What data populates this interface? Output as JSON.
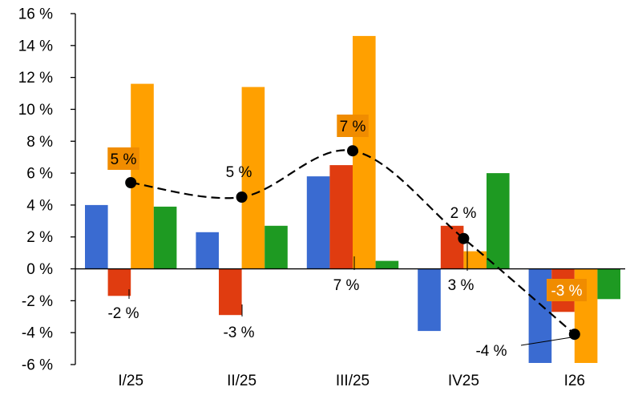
{
  "chart_data": {
    "type": "bar",
    "categories": [
      "I/25",
      "II/25",
      "III/25",
      "IV25",
      "I26"
    ],
    "ylim": [
      -6,
      16
    ],
    "yticks": [
      -6,
      -4,
      -2,
      0,
      2,
      4,
      6,
      8,
      10,
      12,
      14,
      16
    ],
    "ytick_labels": [
      "-6 %",
      "-4 %",
      "-2 %",
      "0 %",
      "2 %",
      "4 %",
      "6 %",
      "8 %",
      "10 %",
      "12 %",
      "14 %",
      "16 %"
    ],
    "grid": false,
    "legend": "none",
    "series": [
      {
        "color": "#3A6BD1",
        "values": [
          4.0,
          2.3,
          5.8,
          -3.9,
          -5.9
        ]
      },
      {
        "color": "#E03C10",
        "values": [
          -1.7,
          -2.9,
          6.5,
          2.7,
          -2.7
        ]
      },
      {
        "color": "#FFA000",
        "values": [
          11.6,
          11.4,
          14.6,
          1.1,
          -5.9
        ]
      },
      {
        "color": "#1E9A22",
        "values": [
          3.9,
          2.7,
          0.5,
          6.0,
          -1.9
        ]
      }
    ],
    "line": {
      "style": "dashed",
      "color": "#000000",
      "values": [
        5.4,
        4.5,
        7.4,
        1.9,
        -4.1
      ]
    },
    "data_labels": [
      {
        "text": "5 %",
        "highlight": true
      },
      {
        "text": "5 %",
        "highlight": false
      },
      {
        "text": "7 %",
        "highlight": true
      },
      {
        "text": "2 %",
        "highlight": false
      },
      {
        "text": "-4 %",
        "highlight": false
      },
      {
        "text": "-2 %",
        "highlight": false
      },
      {
        "text": "-3 %",
        "highlight": false
      },
      {
        "text": "7 %",
        "highlight": false
      },
      {
        "text": "3 %",
        "highlight": false
      },
      {
        "text": "-3 %",
        "highlight": true
      }
    ],
    "highlight_fill": "#F08C00",
    "highlight_text_color": "#FFFFFF"
  }
}
